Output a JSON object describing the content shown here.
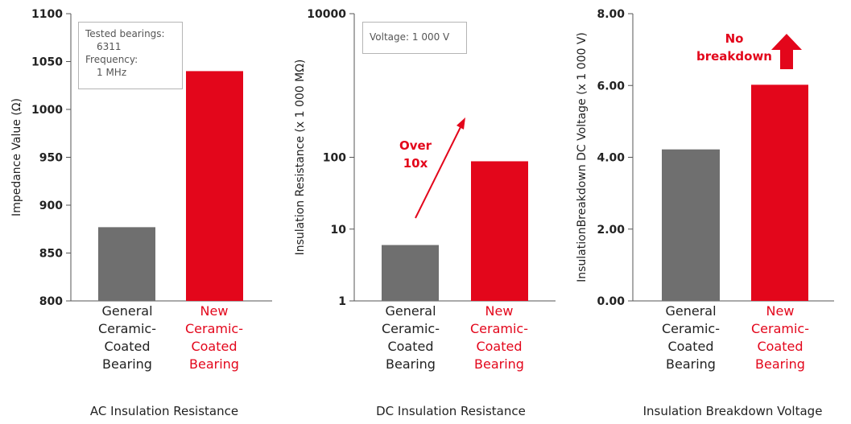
{
  "colors": {
    "general": "#6f6f6f",
    "new": "#e3061b",
    "text": "#222222",
    "axis": "#555555"
  },
  "chart_data": [
    {
      "type": "bar",
      "title": "AC Insulation Resistance",
      "ylabel": "Impedance Value (Ω)",
      "scale": "linear",
      "ylim": [
        800,
        1100
      ],
      "yticks": [
        "800",
        "850",
        "900",
        "950",
        "1000",
        "1050",
        "1100"
      ],
      "yticks_values": [
        800,
        850,
        900,
        950,
        1000,
        1050,
        1100
      ],
      "categories": [
        [
          "General",
          "Ceramic-",
          "Coated",
          "Bearing"
        ],
        [
          "New",
          "Ceramic-",
          "Coated",
          "Bearing"
        ]
      ],
      "values": [
        877,
        1040
      ],
      "note": [
        "Tested bearings:",
        "6311",
        "Frequency:",
        "1 MHz"
      ]
    },
    {
      "type": "bar",
      "title": "DC Insulation Resistance",
      "ylabel": "Insulation Resistance (x 1 000 MΩ)",
      "scale": "log",
      "ylim": [
        1,
        10000
      ],
      "yticks": [
        "1",
        "10",
        "100",
        "10000"
      ],
      "yticks_values": [
        1,
        10,
        100,
        10000
      ],
      "categories": [
        [
          "General",
          "Ceramic-",
          "Coated",
          "Bearing"
        ],
        [
          "New",
          "Ceramic-",
          "Coated",
          "Bearing"
        ]
      ],
      "values": [
        6,
        88
      ],
      "note": [
        "Voltage: 1 000 V"
      ],
      "annotation": [
        "Over",
        "10x"
      ]
    },
    {
      "type": "bar",
      "title": "Insulation Breakdown Voltage",
      "ylabel": "InsulationBreakdown DC Voltage (x 1 000 V)",
      "scale": "linear",
      "ylim": [
        0,
        8
      ],
      "yticks": [
        "0.00",
        "2.00",
        "4.00",
        "6.00",
        "8.00"
      ],
      "yticks_values": [
        0,
        2,
        4,
        6,
        8
      ],
      "categories": [
        [
          "General",
          "Ceramic-",
          "Coated",
          "Bearing"
        ],
        [
          "New",
          "Ceramic-",
          "Coated",
          "Bearing"
        ]
      ],
      "values": [
        4.22,
        6.02
      ],
      "annotation": [
        "No",
        "breakdown"
      ]
    }
  ]
}
